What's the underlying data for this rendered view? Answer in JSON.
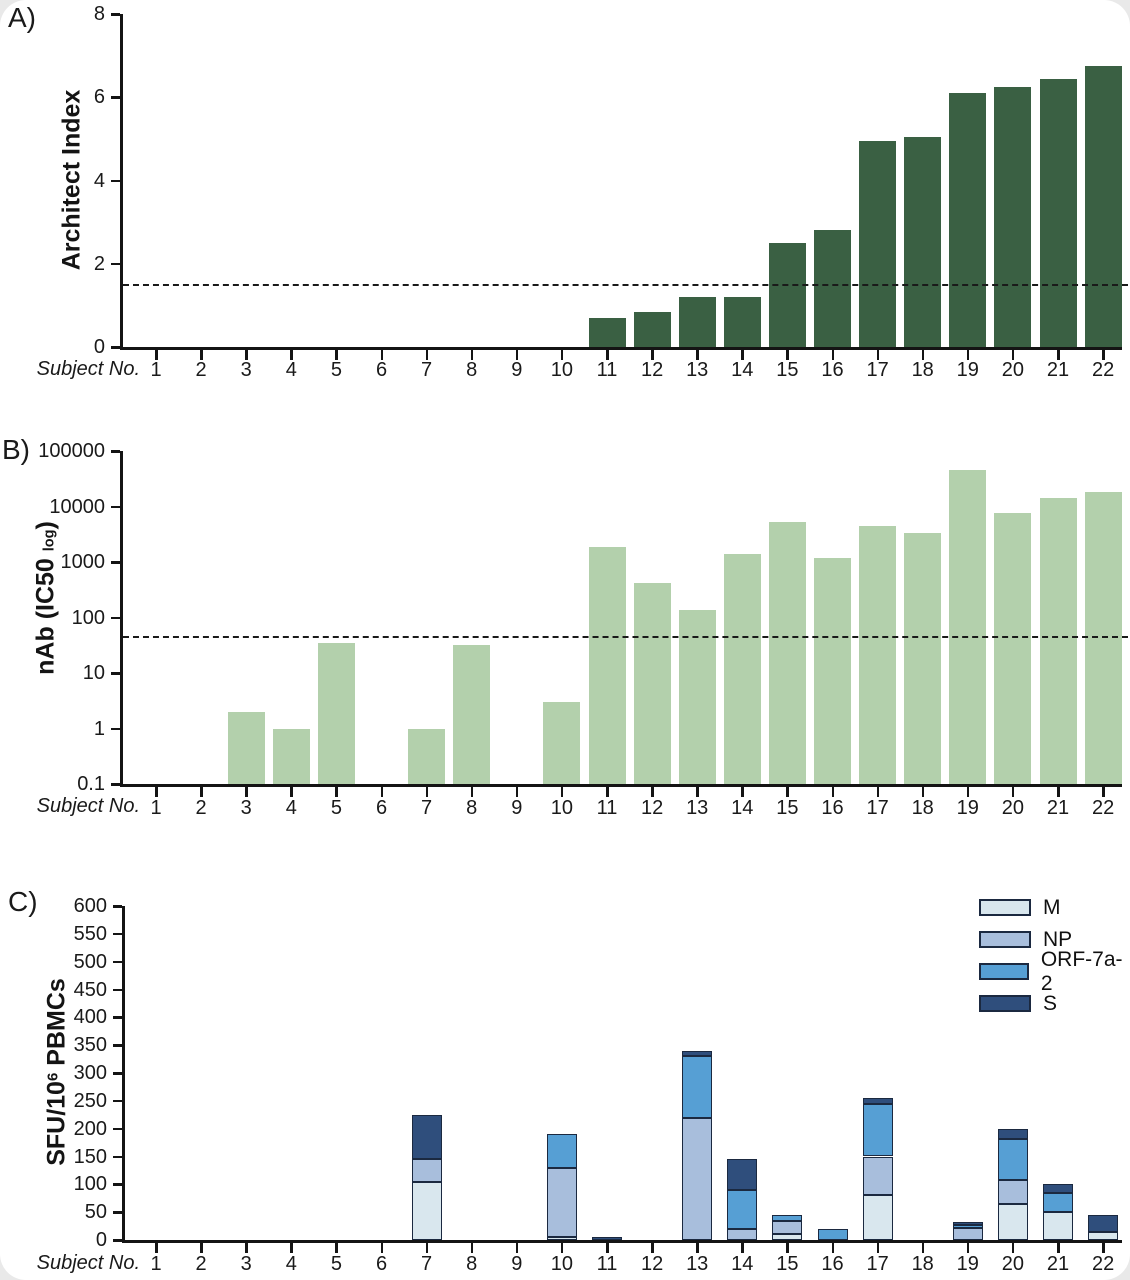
{
  "figure": {
    "background": "#ffffff"
  },
  "chart_data": [
    {
      "type": "bar",
      "panel": "A)",
      "scale": "linear",
      "ylabel": "Architect Index",
      "xlabel": "Subject No.",
      "categories": [
        "1",
        "2",
        "3",
        "4",
        "5",
        "6",
        "7",
        "8",
        "9",
        "10",
        "11",
        "12",
        "13",
        "14",
        "15",
        "16",
        "17",
        "18",
        "19",
        "20",
        "21",
        "22"
      ],
      "values": [
        0,
        0,
        0,
        0,
        0,
        0,
        0,
        0,
        0,
        0,
        0.7,
        0.85,
        1.2,
        1.2,
        2.5,
        2.8,
        4.95,
        5.05,
        6.1,
        6.25,
        6.45,
        6.75
      ],
      "ylim": [
        0,
        8
      ],
      "yticks": [
        "0",
        "2",
        "4",
        "6",
        "8"
      ],
      "threshold": 1.5,
      "bar_color": "#3a6043",
      "grid": false,
      "legend_position": "none"
    },
    {
      "type": "bar",
      "panel": "B)",
      "scale": "log",
      "ylabel_prefix": "nAb (IC50 ",
      "ylabel_sub": "log",
      "ylabel_suffix": ")",
      "xlabel": "Subject No.",
      "categories": [
        "1",
        "2",
        "3",
        "4",
        "5",
        "6",
        "7",
        "8",
        "9",
        "10",
        "11",
        "12",
        "13",
        "14",
        "15",
        "16",
        "17",
        "18",
        "19",
        "20",
        "21",
        "22"
      ],
      "values": [
        0,
        0,
        2,
        1,
        35,
        0,
        1,
        32,
        0,
        3,
        1900,
        420,
        135,
        1400,
        5200,
        1200,
        4400,
        3400,
        45000,
        7700,
        14000,
        18000
      ],
      "ylim": [
        0.1,
        100000
      ],
      "yticks": [
        "0.1",
        "1",
        "10",
        "100",
        "1000",
        "10000",
        "100000"
      ],
      "threshold": 45,
      "bar_color": "#b3d0ac",
      "grid": false,
      "legend_position": "none"
    },
    {
      "type": "stacked-bar",
      "panel": "C)",
      "scale": "linear",
      "ylabel_prefix": "SFU/10",
      "ylabel_sup": "6",
      "ylabel_suffix": " PBMCs",
      "xlabel": "Subject No.",
      "categories": [
        "1",
        "2",
        "3",
        "4",
        "5",
        "6",
        "7",
        "8",
        "9",
        "10",
        "11",
        "12",
        "13",
        "14",
        "15",
        "16",
        "17",
        "18",
        "19",
        "20",
        "21",
        "22"
      ],
      "series": [
        {
          "name": "M",
          "color": "#d9e7ee",
          "values": [
            0,
            0,
            0,
            0,
            0,
            0,
            105,
            0,
            0,
            5,
            0,
            0,
            0,
            0,
            10,
            0,
            80,
            0,
            0,
            65,
            50,
            15
          ]
        },
        {
          "name": "NP",
          "color": "#a8bedc",
          "values": [
            0,
            0,
            0,
            0,
            0,
            0,
            40,
            0,
            0,
            125,
            0,
            0,
            220,
            20,
            25,
            0,
            70,
            0,
            22,
            42,
            0,
            0
          ]
        },
        {
          "name": "ORF-7a-2",
          "color": "#569fd4",
          "values": [
            0,
            0,
            0,
            0,
            0,
            0,
            0,
            0,
            0,
            60,
            0,
            0,
            110,
            70,
            10,
            20,
            95,
            0,
            5,
            75,
            35,
            0
          ]
        },
        {
          "name": "S",
          "color": "#2f4e7c",
          "values": [
            0,
            0,
            0,
            0,
            0,
            0,
            80,
            0,
            0,
            0,
            5,
            0,
            10,
            55,
            0,
            0,
            10,
            0,
            5,
            18,
            15,
            30
          ]
        }
      ],
      "ylim": [
        0,
        600
      ],
      "yticks": [
        "0",
        "50",
        "100",
        "150",
        "200",
        "250",
        "300",
        "350",
        "400",
        "450",
        "500",
        "550",
        "600"
      ],
      "segment_border": "#1b2940",
      "grid": false,
      "legend_position": "top-right"
    }
  ]
}
